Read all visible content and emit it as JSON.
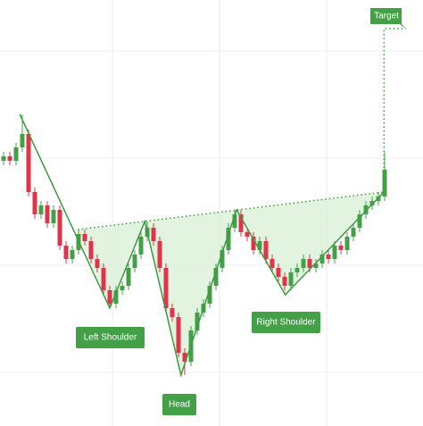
{
  "chart_data": {
    "type": "candlestick",
    "xlim": [
      -0.5714,
      67.143
    ],
    "ylim": [
      0,
      477
    ],
    "up_color": "#43a047",
    "down_color": "#e0344b",
    "pattern_color": "#3f9a3f",
    "open": [
      297,
      302,
      297,
      312,
      327,
      262,
      237,
      247,
      227,
      242,
      202,
      187,
      197,
      215,
      207,
      187,
      177,
      152,
      137,
      152,
      157,
      177,
      192,
      212,
      222,
      207,
      177,
      132,
      122,
      82,
      72,
      107,
      127,
      137,
      157,
      177,
      197,
      222,
      237,
      217,
      212,
      197,
      207,
      187,
      177,
      167,
      157,
      172,
      177,
      187,
      177,
      182,
      192,
      187,
      202,
      197,
      212,
      222,
      237,
      247,
      252,
      257
    ],
    "high": [
      307,
      307,
      317,
      349,
      332,
      267,
      252,
      252,
      247,
      247,
      207,
      202,
      220,
      220,
      212,
      192,
      182,
      157,
      157,
      162,
      182,
      197,
      217,
      229,
      227,
      212,
      182,
      137,
      127,
      87,
      112,
      132,
      142,
      162,
      182,
      202,
      227,
      242,
      242,
      222,
      217,
      212,
      212,
      192,
      182,
      172,
      177,
      182,
      192,
      192,
      187,
      197,
      197,
      207,
      207,
      217,
      227,
      242,
      252,
      257,
      262,
      307
    ],
    "low": [
      292,
      292,
      292,
      307,
      257,
      232,
      232,
      222,
      222,
      197,
      182,
      182,
      192,
      202,
      182,
      172,
      147,
      132,
      132,
      147,
      152,
      172,
      187,
      207,
      202,
      172,
      127,
      117,
      77,
      57,
      67,
      102,
      122,
      132,
      152,
      172,
      192,
      217,
      212,
      207,
      192,
      192,
      182,
      172,
      162,
      152,
      152,
      167,
      172,
      172,
      172,
      177,
      182,
      182,
      192,
      192,
      207,
      217,
      232,
      242,
      247,
      252
    ],
    "close": [
      302,
      297,
      312,
      327,
      262,
      237,
      247,
      227,
      242,
      202,
      187,
      197,
      215,
      207,
      187,
      177,
      152,
      137,
      152,
      157,
      177,
      192,
      212,
      222,
      207,
      177,
      132,
      122,
      82,
      72,
      107,
      127,
      137,
      157,
      177,
      197,
      222,
      237,
      217,
      212,
      197,
      207,
      187,
      177,
      167,
      157,
      172,
      177,
      187,
      177,
      182,
      192,
      187,
      202,
      197,
      212,
      222,
      237,
      247,
      252,
      257,
      287
    ],
    "pattern": {
      "x": [
        2.6,
        17,
        22.6,
        28.4,
        37.3,
        45.1,
        60.9
      ],
      "values": [
        349,
        132,
        229,
        57,
        242,
        147,
        262
      ]
    },
    "neckline": {
      "x": [
        11.9,
        60.9
      ],
      "values": [
        220,
        262
      ]
    },
    "target_line": {
      "x": [
        60.9,
        60.9,
        64.4
      ],
      "values": [
        262,
        445,
        445
      ]
    },
    "annotations": [
      "Target",
      "Left Shoulder",
      "Head",
      "Right Shoulder"
    ]
  }
}
